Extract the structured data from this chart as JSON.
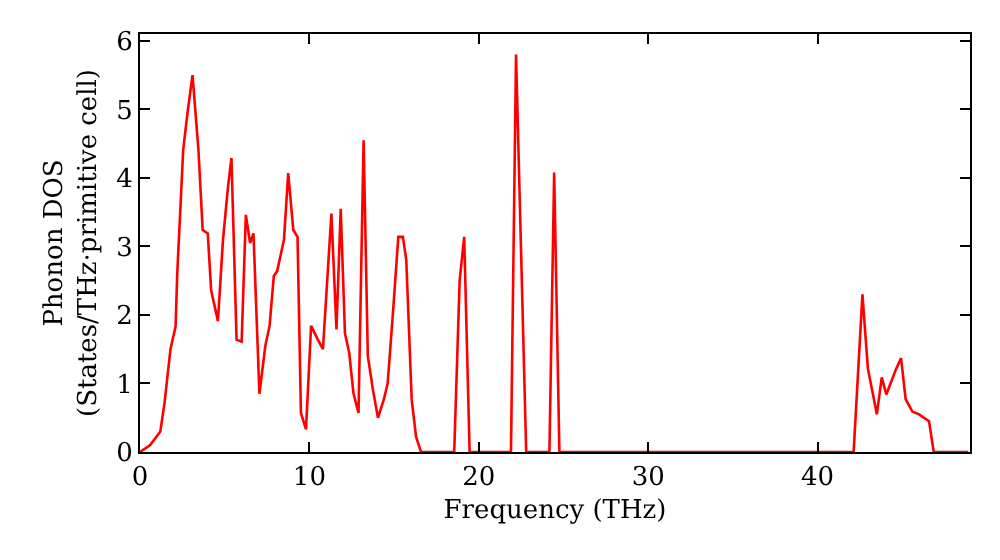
{
  "chart_data": {
    "type": "line",
    "xlabel": "Frequency (THz)",
    "ylabel": "Phonon DOS\n(States/THz·primitive cell)",
    "xlim": [
      0,
      49
    ],
    "ylim": [
      0,
      6.1
    ],
    "xticks": [
      0,
      10,
      20,
      30,
      40
    ],
    "yticks": [
      0,
      1,
      2,
      3,
      4,
      5,
      6
    ],
    "marker": "none",
    "line_style": "solid",
    "series": [
      {
        "color": "#ff0000",
        "x": [
          0,
          0.6,
          1.2,
          1.45,
          1.8,
          2.1,
          2.2,
          2.55,
          2.8,
          3.1,
          3.45,
          3.7,
          4.0,
          4.2,
          4.6,
          4.9,
          5.2,
          5.4,
          5.7,
          6.0,
          6.25,
          6.5,
          6.7,
          7.05,
          7.4,
          7.65,
          7.9,
          8.1,
          8.5,
          8.75,
          9.05,
          9.3,
          9.5,
          9.8,
          10.1,
          10.5,
          10.8,
          11.3,
          11.6,
          11.85,
          12.1,
          12.35,
          12.6,
          12.9,
          13.2,
          13.45,
          13.75,
          14.05,
          14.4,
          14.62,
          14.93,
          15.25,
          15.52,
          15.72,
          16.04,
          16.3,
          16.59,
          18.55,
          18.87,
          19.14,
          19.46,
          21.9,
          22.2,
          22.8,
          24.17,
          24.45,
          24.76,
          42.13,
          42.65,
          42.97,
          43.5,
          43.79,
          44.06,
          44.6,
          44.93,
          45.2,
          45.6,
          45.99,
          46.58,
          46.86,
          48.9
        ],
        "values": [
          0,
          0.1,
          0.3,
          0.72,
          1.5,
          1.83,
          2.61,
          4.41,
          4.94,
          5.5,
          4.41,
          3.24,
          3.19,
          2.36,
          1.91,
          3.1,
          3.88,
          4.29,
          1.64,
          1.61,
          3.46,
          3.05,
          3.19,
          0.85,
          1.55,
          1.84,
          2.57,
          2.64,
          3.1,
          4.07,
          3.24,
          3.14,
          0.57,
          0.33,
          1.84,
          1.64,
          1.5,
          3.48,
          1.79,
          3.55,
          1.73,
          1.45,
          0.86,
          0.57,
          4.55,
          1.4,
          0.91,
          0.5,
          0.77,
          1.0,
          2.02,
          3.14,
          3.14,
          2.8,
          0.76,
          0.22,
          0,
          0,
          2.5,
          3.14,
          0,
          0,
          5.8,
          0,
          0,
          4.08,
          0,
          0,
          2.3,
          1.22,
          0.55,
          1.09,
          0.84,
          1.19,
          1.37,
          0.77,
          0.59,
          0.55,
          0.45,
          0,
          0
        ]
      }
    ]
  }
}
